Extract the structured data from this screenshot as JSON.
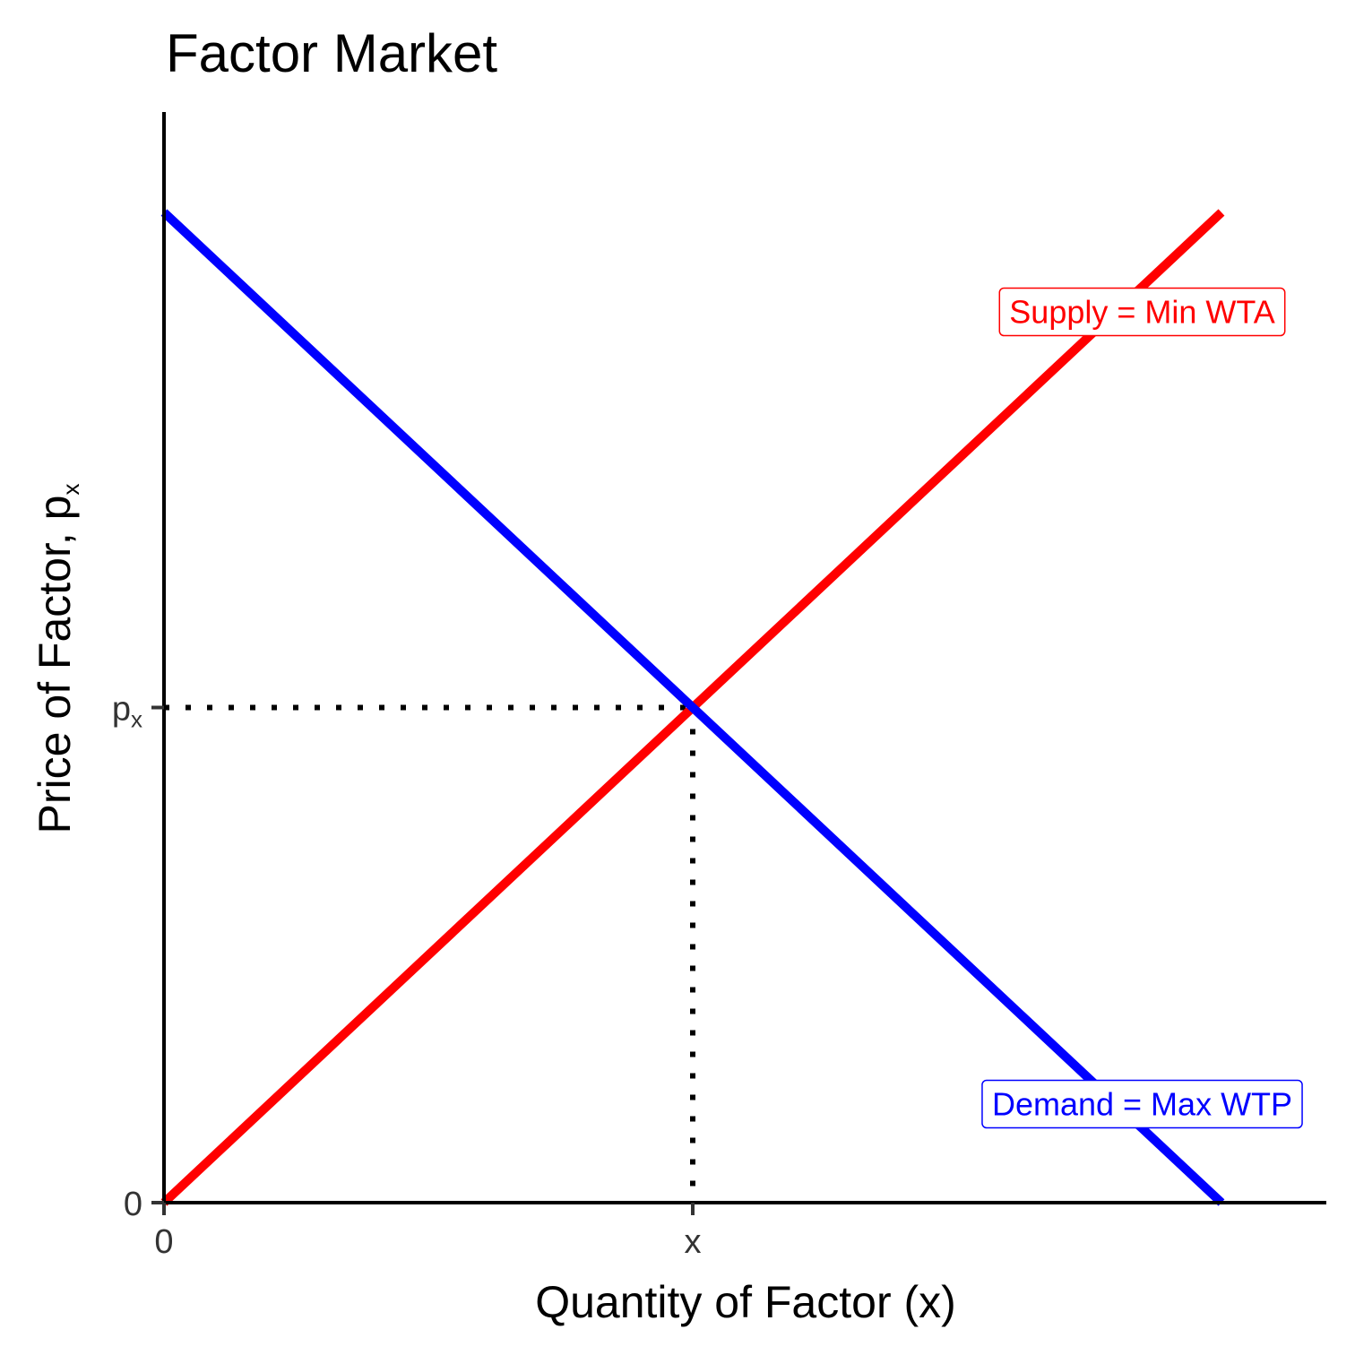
{
  "chart_data": {
    "type": "line",
    "title": "Factor Market",
    "xlabel": "Quantity of Factor (x)",
    "ylabel": {
      "main": "Price of Factor, p",
      "subscript": "x"
    },
    "xlim": [
      0,
      11
    ],
    "ylim": [
      0,
      11
    ],
    "x_ticks": [
      {
        "value": 0,
        "label": "0"
      },
      {
        "value": 5,
        "label": "x"
      }
    ],
    "y_ticks": [
      {
        "value": 0,
        "label": "0"
      },
      {
        "value": 5,
        "label": "p",
        "subscript": "x"
      }
    ],
    "grid": false,
    "series": [
      {
        "name": "Supply = Min WTA",
        "color": "#ff0000",
        "x": [
          0,
          10
        ],
        "y": [
          0,
          10
        ]
      },
      {
        "name": "Demand = Max WTP",
        "color": "#0000ff",
        "x": [
          0,
          10
        ],
        "y": [
          10,
          0
        ]
      }
    ],
    "equilibrium": {
      "x": 5,
      "y": 5
    },
    "annotations": [
      {
        "text": "Supply = Min WTA",
        "color": "#ff0000",
        "x": 9.25,
        "y": 9
      },
      {
        "text": "Demand = Max WTP",
        "color": "#0000ff",
        "x": 9.25,
        "y": 1
      }
    ]
  }
}
